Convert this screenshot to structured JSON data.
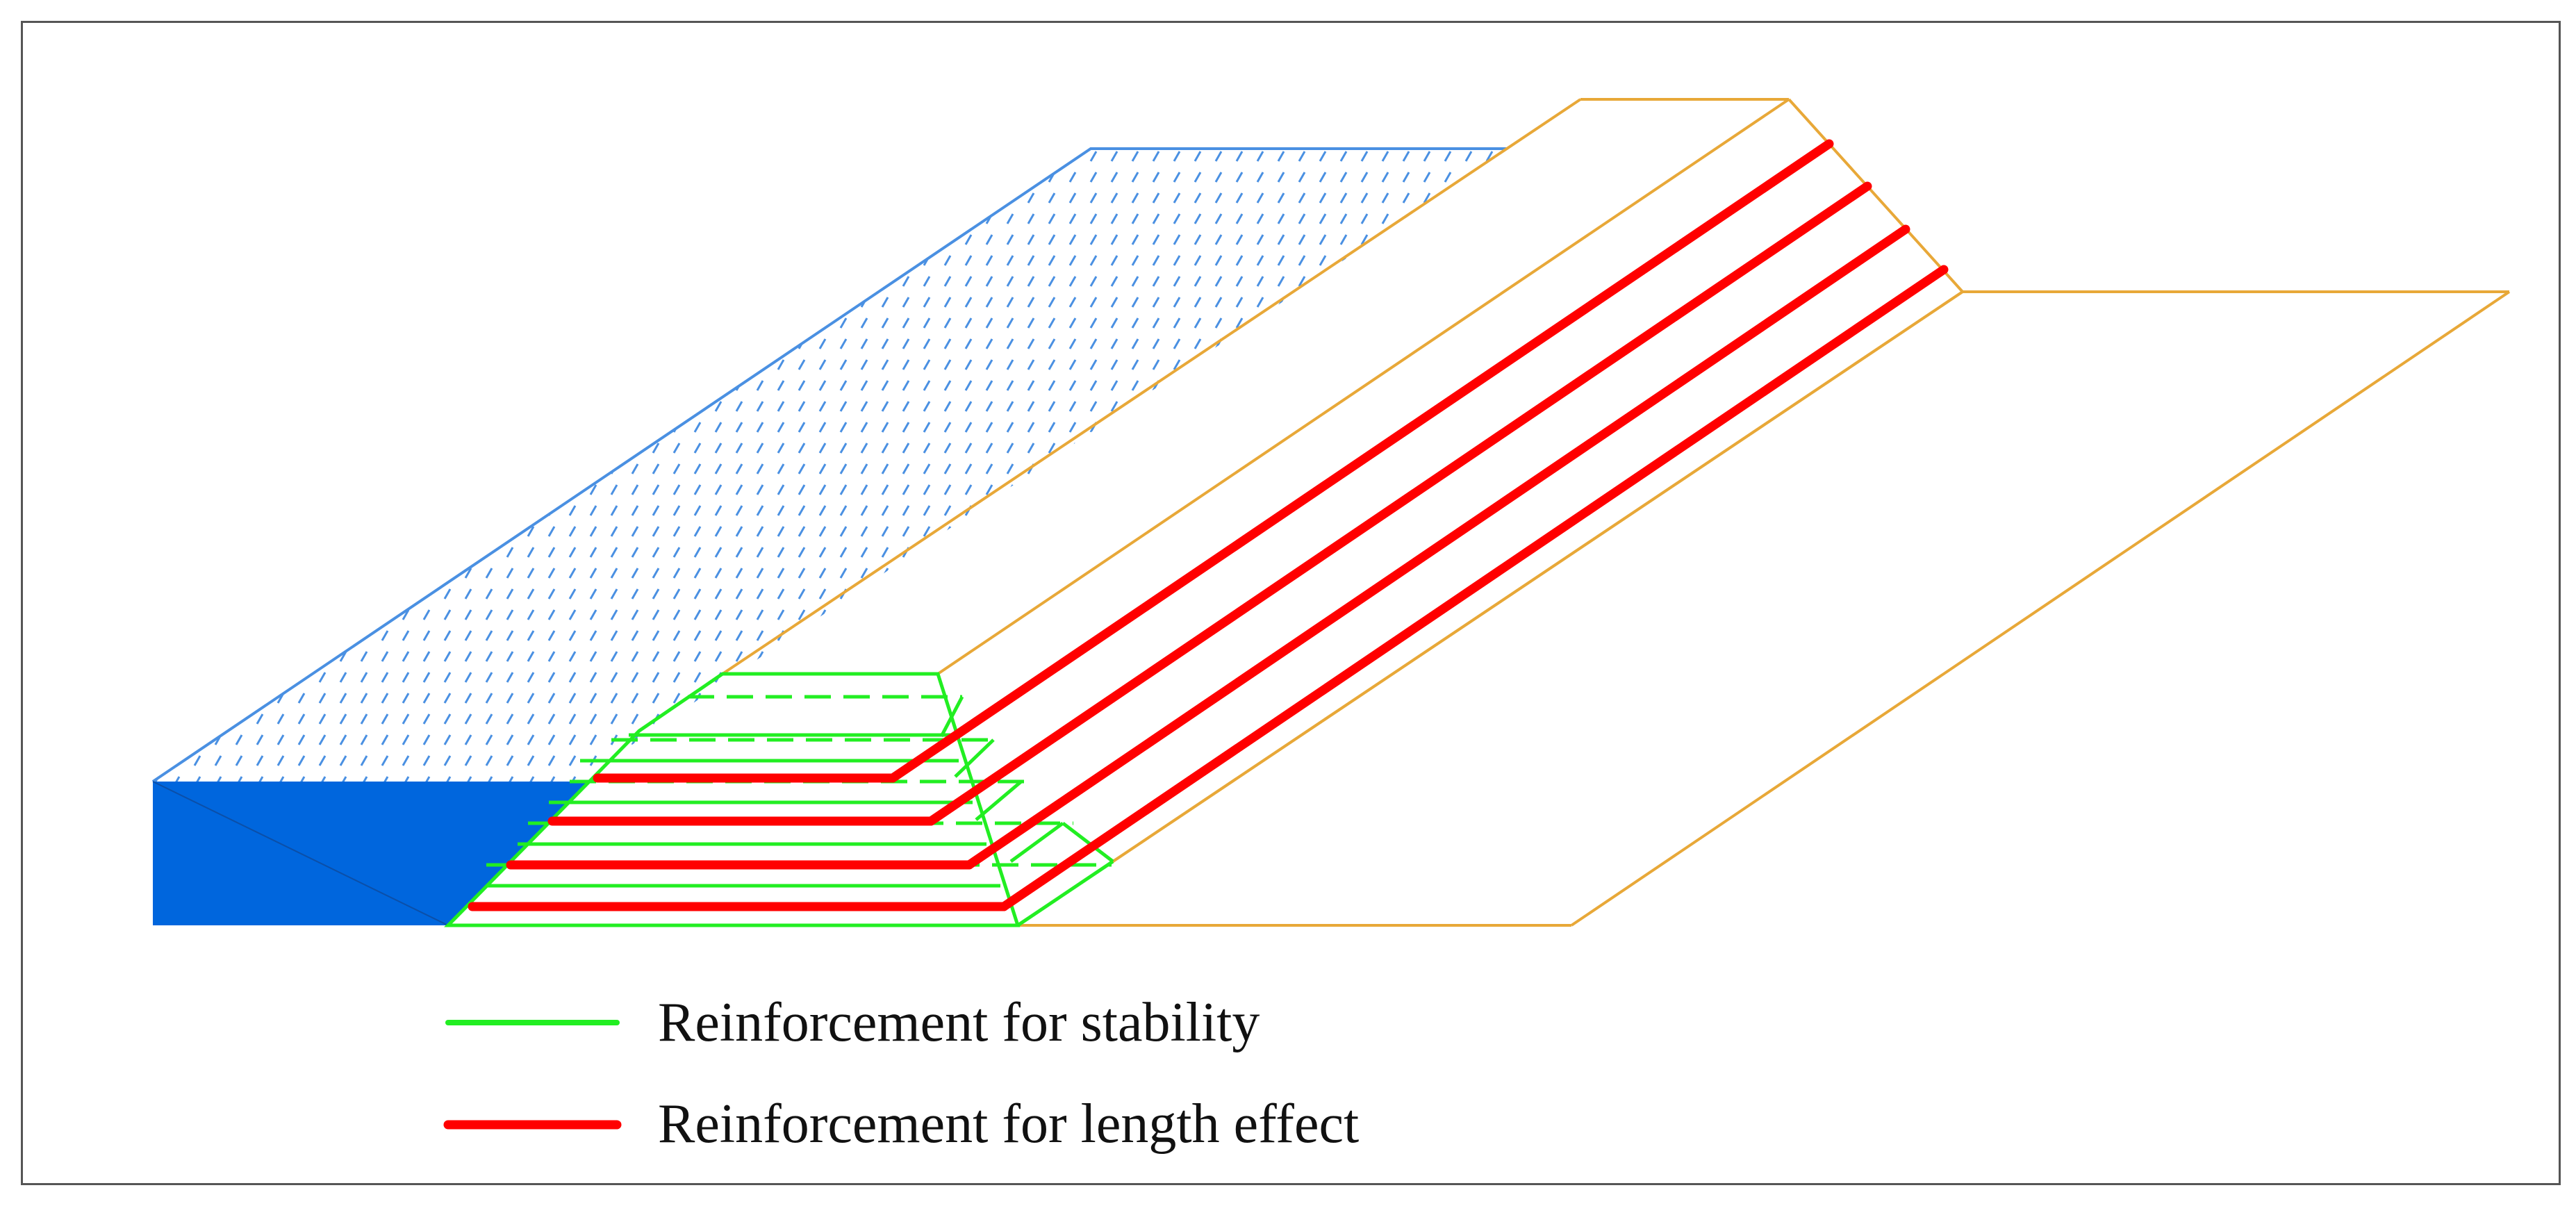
{
  "legend": {
    "stability": {
      "label": "Reinforcement for stability",
      "color": "#22ee22"
    },
    "length_effect": {
      "label": "Reinforcement for length effect",
      "color": "#ff0000"
    }
  },
  "colors": {
    "water": "#0066dd",
    "water_hatch": "#4a90e2",
    "dike_outline": "#e8a838",
    "frame": "#555555"
  }
}
